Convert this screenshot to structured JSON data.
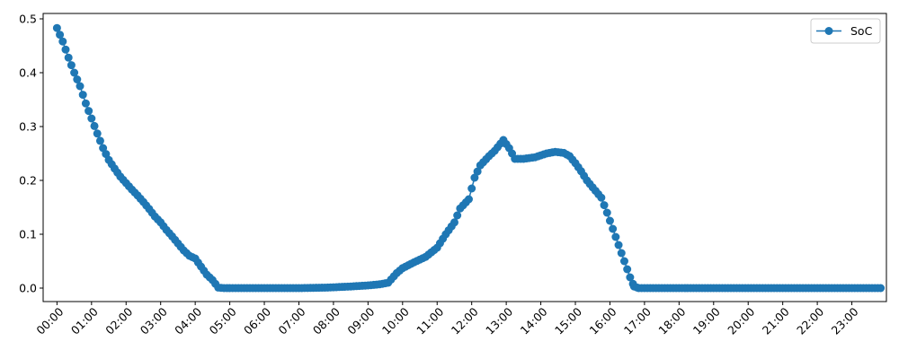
{
  "chart_data": {
    "type": "line",
    "x_unit": "hour of day (HH:MM)",
    "xlim": [
      "-00:24",
      "24:00"
    ],
    "ylim": [
      -0.025,
      0.51
    ],
    "x_ticks": [
      "00:00",
      "01:00",
      "02:00",
      "03:00",
      "04:00",
      "05:00",
      "06:00",
      "07:00",
      "08:00",
      "09:00",
      "10:00",
      "11:00",
      "12:00",
      "13:00",
      "14:00",
      "15:00",
      "16:00",
      "17:00",
      "18:00",
      "19:00",
      "20:00",
      "21:00",
      "22:00",
      "23:00"
    ],
    "y_ticks": [
      "0.0",
      "0.1",
      "0.2",
      "0.3",
      "0.4",
      "0.5"
    ],
    "y_tick_values": [
      0,
      0.1,
      0.2,
      0.3,
      0.4,
      0.5
    ],
    "legend": {
      "position": "top-right",
      "entries": [
        "SoC"
      ]
    },
    "grid": false,
    "series": [
      {
        "name": "SoC",
        "color": "#1f77b4",
        "marker": "circle",
        "points": [
          [
            "00:00",
            0.483
          ],
          [
            "00:10",
            0.458
          ],
          [
            "00:20",
            0.428
          ],
          [
            "00:30",
            0.4
          ],
          [
            "00:40",
            0.375
          ],
          [
            "00:50",
            0.343
          ],
          [
            "01:00",
            0.315
          ],
          [
            "01:10",
            0.287
          ],
          [
            "01:20",
            0.26
          ],
          [
            "01:30",
            0.238
          ],
          [
            "01:40",
            0.222
          ],
          [
            "01:50",
            0.207
          ],
          [
            "02:00",
            0.195
          ],
          [
            "02:10",
            0.183
          ],
          [
            "02:20",
            0.172
          ],
          [
            "02:30",
            0.16
          ],
          [
            "02:40",
            0.147
          ],
          [
            "02:50",
            0.133
          ],
          [
            "03:00",
            0.122
          ],
          [
            "03:10",
            0.108
          ],
          [
            "03:20",
            0.096
          ],
          [
            "03:30",
            0.083
          ],
          [
            "03:40",
            0.07
          ],
          [
            "03:50",
            0.06
          ],
          [
            "04:00",
            0.055
          ],
          [
            "04:10",
            0.04
          ],
          [
            "04:20",
            0.025
          ],
          [
            "04:30",
            0.015
          ],
          [
            "04:40",
            0.001
          ],
          [
            "04:50",
            0.0
          ],
          [
            "06:00",
            0.0
          ],
          [
            "07:00",
            0.0
          ],
          [
            "07:50",
            0.001
          ],
          [
            "08:30",
            0.003
          ],
          [
            "09:00",
            0.005
          ],
          [
            "09:20",
            0.007
          ],
          [
            "09:35",
            0.01
          ],
          [
            "09:50",
            0.028
          ],
          [
            "10:00",
            0.037
          ],
          [
            "10:20",
            0.048
          ],
          [
            "10:40",
            0.058
          ],
          [
            "11:00",
            0.075
          ],
          [
            "11:15",
            0.1
          ],
          [
            "11:30",
            0.122
          ],
          [
            "11:40",
            0.148
          ],
          [
            "11:55",
            0.165
          ],
          [
            "12:05",
            0.205
          ],
          [
            "12:15",
            0.228
          ],
          [
            "12:30",
            0.245
          ],
          [
            "12:40",
            0.255
          ],
          [
            "12:55",
            0.275
          ],
          [
            "13:05",
            0.26
          ],
          [
            "13:15",
            0.24
          ],
          [
            "13:30",
            0.24
          ],
          [
            "13:50",
            0.243
          ],
          [
            "14:10",
            0.25
          ],
          [
            "14:25",
            0.253
          ],
          [
            "14:40",
            0.251
          ],
          [
            "14:50",
            0.245
          ],
          [
            "15:00",
            0.232
          ],
          [
            "15:10",
            0.217
          ],
          [
            "15:20",
            0.2
          ],
          [
            "15:30",
            0.187
          ],
          [
            "15:45",
            0.168
          ],
          [
            "15:55",
            0.14
          ],
          [
            "16:05",
            0.11
          ],
          [
            "16:15",
            0.08
          ],
          [
            "16:25",
            0.05
          ],
          [
            "16:35",
            0.02
          ],
          [
            "16:42",
            0.003
          ],
          [
            "16:50",
            0.0
          ],
          [
            "18:00",
            0.0
          ],
          [
            "20:00",
            0.0
          ],
          [
            "22:00",
            0.0
          ],
          [
            "23:50",
            0.0
          ]
        ]
      }
    ]
  }
}
